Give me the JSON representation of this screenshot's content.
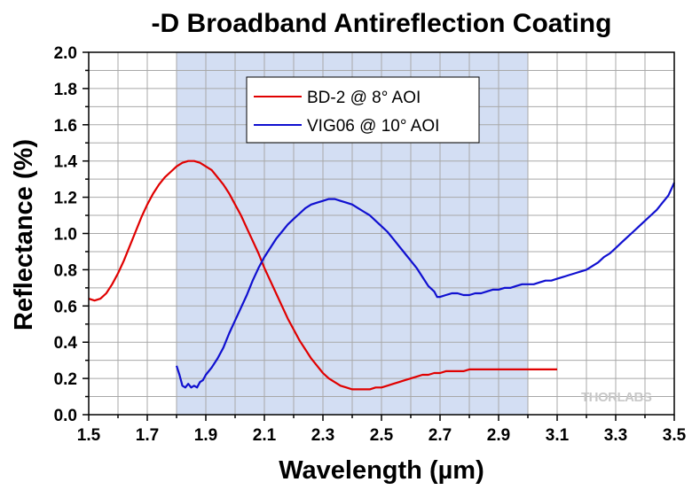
{
  "chart_data": {
    "type": "line",
    "title": "-D Broadband Antireflection Coating",
    "xlabel": "Wavelength (µm)",
    "ylabel": "Reflectance (%)",
    "xlim": [
      1.5,
      3.5
    ],
    "ylim": [
      0.0,
      2.0
    ],
    "x_ticks": [
      "1.5",
      "1.7",
      "1.9",
      "2.1",
      "2.3",
      "2.5",
      "2.7",
      "2.9",
      "3.1",
      "3.3",
      "3.5"
    ],
    "y_ticks": [
      "0.0",
      "0.2",
      "0.4",
      "0.6",
      "0.8",
      "1.0",
      "1.2",
      "1.4",
      "1.6",
      "1.8",
      "2.0"
    ],
    "grid": true,
    "legend_position": "top-center",
    "shaded_region": {
      "x_start": 1.8,
      "x_end": 3.0,
      "color": "#d3def3"
    },
    "watermark": "THORLABS",
    "series": [
      {
        "name": "BD-2 @ 8° AOI",
        "color": "#e00000",
        "x": [
          1.5,
          1.52,
          1.54,
          1.56,
          1.58,
          1.6,
          1.62,
          1.64,
          1.66,
          1.68,
          1.7,
          1.72,
          1.74,
          1.76,
          1.78,
          1.8,
          1.82,
          1.84,
          1.86,
          1.88,
          1.9,
          1.92,
          1.94,
          1.96,
          1.98,
          2.0,
          2.02,
          2.04,
          2.06,
          2.08,
          2.1,
          2.12,
          2.14,
          2.16,
          2.18,
          2.2,
          2.22,
          2.24,
          2.26,
          2.28,
          2.3,
          2.32,
          2.34,
          2.36,
          2.38,
          2.4,
          2.42,
          2.44,
          2.46,
          2.48,
          2.5,
          2.52,
          2.54,
          2.56,
          2.58,
          2.6,
          2.62,
          2.64,
          2.66,
          2.68,
          2.7,
          2.72,
          2.74,
          2.76,
          2.78,
          2.8,
          2.82,
          2.84,
          2.86,
          2.88,
          2.9,
          2.92,
          2.94,
          2.96,
          2.98,
          3.0,
          3.02,
          3.04,
          3.06,
          3.08,
          3.1
        ],
        "values": [
          0.64,
          0.63,
          0.64,
          0.67,
          0.72,
          0.78,
          0.85,
          0.93,
          1.01,
          1.09,
          1.16,
          1.22,
          1.27,
          1.31,
          1.34,
          1.37,
          1.39,
          1.4,
          1.4,
          1.39,
          1.37,
          1.35,
          1.31,
          1.27,
          1.22,
          1.16,
          1.1,
          1.03,
          0.96,
          0.89,
          0.81,
          0.74,
          0.67,
          0.6,
          0.53,
          0.47,
          0.41,
          0.36,
          0.31,
          0.27,
          0.23,
          0.2,
          0.18,
          0.16,
          0.15,
          0.14,
          0.14,
          0.14,
          0.14,
          0.15,
          0.15,
          0.16,
          0.17,
          0.18,
          0.19,
          0.2,
          0.21,
          0.22,
          0.22,
          0.23,
          0.23,
          0.24,
          0.24,
          0.24,
          0.24,
          0.25,
          0.25,
          0.25,
          0.25,
          0.25,
          0.25,
          0.25,
          0.25,
          0.25,
          0.25,
          0.25,
          0.25,
          0.25,
          0.25,
          0.25,
          0.25
        ]
      },
      {
        "name": "VIG06 @ 10° AOI",
        "color": "#1010d0",
        "x": [
          1.8,
          1.81,
          1.82,
          1.83,
          1.84,
          1.85,
          1.86,
          1.87,
          1.88,
          1.89,
          1.9,
          1.92,
          1.94,
          1.96,
          1.98,
          2.0,
          2.02,
          2.04,
          2.06,
          2.08,
          2.1,
          2.12,
          2.14,
          2.16,
          2.18,
          2.2,
          2.22,
          2.24,
          2.26,
          2.28,
          2.3,
          2.32,
          2.34,
          2.36,
          2.38,
          2.4,
          2.42,
          2.44,
          2.46,
          2.48,
          2.5,
          2.52,
          2.54,
          2.56,
          2.58,
          2.6,
          2.62,
          2.64,
          2.66,
          2.68,
          2.69,
          2.7,
          2.72,
          2.74,
          2.76,
          2.78,
          2.8,
          2.82,
          2.84,
          2.86,
          2.88,
          2.9,
          2.92,
          2.94,
          2.96,
          2.98,
          3.0,
          3.02,
          3.04,
          3.06,
          3.08,
          3.1,
          3.12,
          3.14,
          3.16,
          3.18,
          3.2,
          3.22,
          3.24,
          3.26,
          3.28,
          3.3,
          3.32,
          3.34,
          3.36,
          3.38,
          3.4,
          3.42,
          3.44,
          3.46,
          3.48,
          3.5
        ],
        "values": [
          0.27,
          0.22,
          0.16,
          0.15,
          0.17,
          0.15,
          0.16,
          0.15,
          0.18,
          0.19,
          0.22,
          0.26,
          0.31,
          0.37,
          0.45,
          0.52,
          0.59,
          0.66,
          0.74,
          0.81,
          0.87,
          0.92,
          0.97,
          1.01,
          1.05,
          1.08,
          1.11,
          1.14,
          1.16,
          1.17,
          1.18,
          1.19,
          1.19,
          1.18,
          1.17,
          1.16,
          1.14,
          1.12,
          1.1,
          1.07,
          1.04,
          1.01,
          0.97,
          0.93,
          0.89,
          0.85,
          0.81,
          0.76,
          0.71,
          0.68,
          0.65,
          0.65,
          0.66,
          0.67,
          0.67,
          0.66,
          0.66,
          0.67,
          0.67,
          0.68,
          0.69,
          0.69,
          0.7,
          0.7,
          0.71,
          0.72,
          0.72,
          0.72,
          0.73,
          0.74,
          0.74,
          0.75,
          0.76,
          0.77,
          0.78,
          0.79,
          0.8,
          0.82,
          0.84,
          0.87,
          0.89,
          0.92,
          0.95,
          0.98,
          1.01,
          1.04,
          1.07,
          1.1,
          1.13,
          1.17,
          1.21,
          1.28
        ]
      }
    ]
  }
}
